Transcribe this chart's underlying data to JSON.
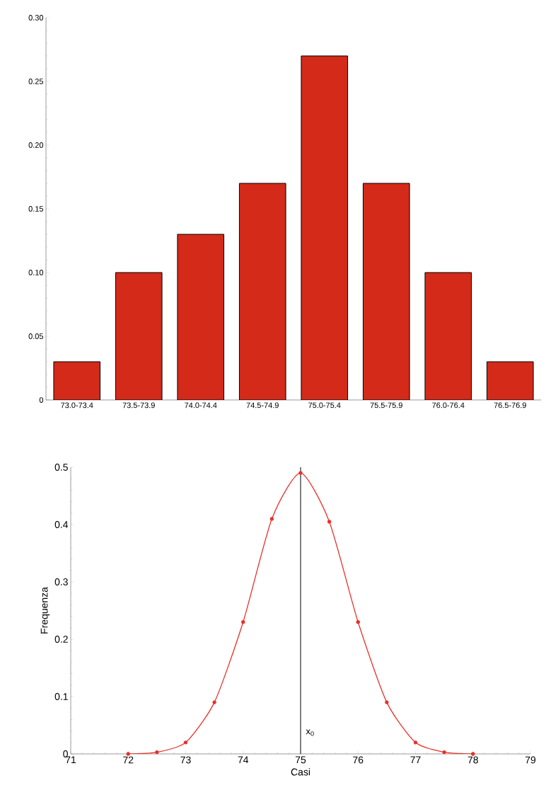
{
  "chart_data": [
    {
      "type": "bar",
      "categories": [
        "73.0-73.4",
        "73.5-73.9",
        "74.0-74.4",
        "74.5-74.9",
        "75.0-75.4",
        "75.5-75.9",
        "76.0-76.4",
        "76.5-76.9"
      ],
      "values": [
        0.03,
        0.1,
        0.13,
        0.17,
        0.27,
        0.17,
        0.1,
        0.03
      ],
      "color": "#d42a1a",
      "ylim": [
        0,
        0.3
      ],
      "yticks": [
        0,
        {
          "value": 0.05,
          "label": "0.05"
        },
        {
          "value": 0.1,
          "label": "0.10"
        },
        {
          "value": 0.15,
          "label": "0.15"
        },
        {
          "value": 0.2,
          "label": "0.20"
        },
        {
          "value": 0.25,
          "label": "0.25"
        },
        {
          "value": 0.3,
          "label": "0.30"
        }
      ]
    },
    {
      "type": "line",
      "xlabel": "Casi",
      "ylabel": "Frequenza",
      "marker": "circle",
      "x": [
        72,
        72.5,
        73,
        73.5,
        74,
        74.5,
        75,
        75.5,
        76,
        76.5,
        77,
        77.5,
        78
      ],
      "values": [
        0,
        0.003,
        0.02,
        0.09,
        0.23,
        0.41,
        0.49,
        0.405,
        0.23,
        0.09,
        0.02,
        0.003,
        0
      ],
      "color": "#e8312a",
      "xlim": [
        71,
        79
      ],
      "xticks": [
        71,
        72,
        73,
        74,
        75,
        76,
        77,
        78,
        79
      ],
      "ylim": [
        0,
        0.5
      ],
      "yticks": [
        0,
        0.1,
        0.2,
        0.3,
        0.4,
        0.5
      ],
      "ref_lines": [
        {
          "axis": "x",
          "value": 75,
          "label": "x$_{0}$",
          "color": "#000000"
        }
      ]
    }
  ]
}
